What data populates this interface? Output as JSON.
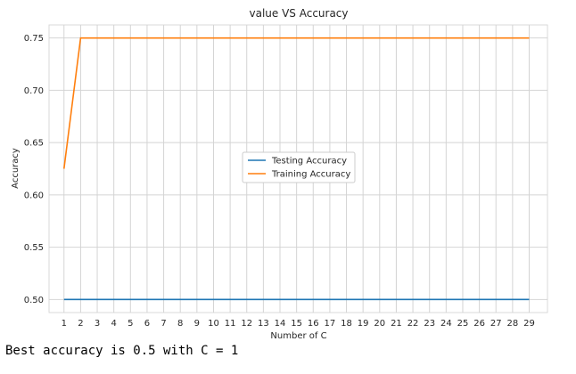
{
  "chart_data": {
    "type": "line",
    "title": "value VS Accuracy",
    "xlabel": "Number of C",
    "ylabel": "Accuracy",
    "x": [
      1,
      2,
      3,
      4,
      5,
      6,
      7,
      8,
      9,
      10,
      11,
      12,
      13,
      14,
      15,
      16,
      17,
      18,
      19,
      20,
      21,
      22,
      23,
      24,
      25,
      26,
      27,
      28,
      29
    ],
    "xlim": [
      0.1,
      30.1
    ],
    "ylim": [
      0.4875,
      0.7625
    ],
    "yticks": [
      "0.50",
      "0.55",
      "0.60",
      "0.65",
      "0.70",
      "0.75"
    ],
    "xticks": [
      "1",
      "2",
      "3",
      "4",
      "5",
      "6",
      "7",
      "8",
      "9",
      "10",
      "11",
      "12",
      "13",
      "14",
      "15",
      "16",
      "17",
      "18",
      "19",
      "20",
      "21",
      "22",
      "23",
      "24",
      "25",
      "26",
      "27",
      "28",
      "29"
    ],
    "grid": true,
    "legend_position": "center",
    "series": [
      {
        "name": "Testing Accuracy",
        "color": "#1f77b4",
        "values": [
          0.5,
          0.5,
          0.5,
          0.5,
          0.5,
          0.5,
          0.5,
          0.5,
          0.5,
          0.5,
          0.5,
          0.5,
          0.5,
          0.5,
          0.5,
          0.5,
          0.5,
          0.5,
          0.5,
          0.5,
          0.5,
          0.5,
          0.5,
          0.5,
          0.5,
          0.5,
          0.5,
          0.5,
          0.5
        ]
      },
      {
        "name": "Training Accuracy",
        "color": "#ff7f0e",
        "values": [
          0.625,
          0.75,
          0.75,
          0.75,
          0.75,
          0.75,
          0.75,
          0.75,
          0.75,
          0.75,
          0.75,
          0.75,
          0.75,
          0.75,
          0.75,
          0.75,
          0.75,
          0.75,
          0.75,
          0.75,
          0.75,
          0.75,
          0.75,
          0.75,
          0.75,
          0.75,
          0.75,
          0.75,
          0.75
        ]
      }
    ]
  },
  "output": {
    "text": "Best accuracy is 0.5 with C = 1"
  }
}
